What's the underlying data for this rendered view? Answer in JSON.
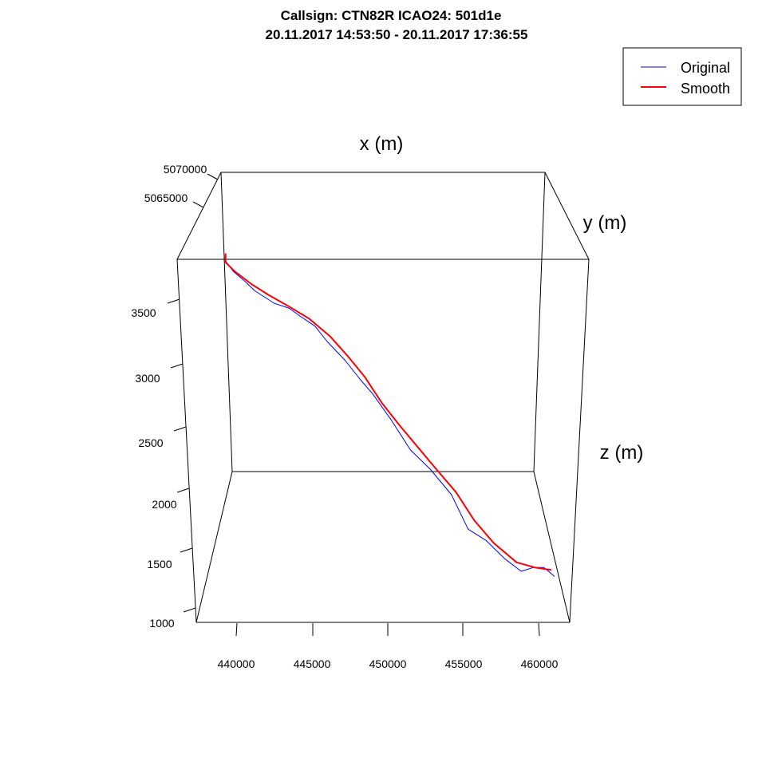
{
  "chart_data": {
    "type": "line",
    "title": "Callsign: CTN82R   ICAO24: 501d1e",
    "subtitle": "20.11.2017 14:53:50 - 20.11.2017 17:36:55",
    "xlabel": "x (m)",
    "ylabel": "y (m)",
    "zlabel": "z (m)",
    "x_ticks": [
      "440000",
      "445000",
      "450000",
      "455000",
      "460000"
    ],
    "y_ticks": [
      "5070000",
      "5065000"
    ],
    "z_ticks": [
      "1000",
      "1500",
      "2000",
      "2500",
      "3000",
      "3500"
    ],
    "legend_position": "top-right",
    "series": [
      {
        "name": "Original",
        "color": "#0000ff",
        "points": [
          [
            439300,
            3830
          ],
          [
            439800,
            3750
          ],
          [
            440500,
            3680
          ],
          [
            441200,
            3600
          ],
          [
            442500,
            3500
          ],
          [
            443500,
            3460
          ],
          [
            444200,
            3400
          ],
          [
            445200,
            3320
          ],
          [
            446000,
            3200
          ],
          [
            447200,
            3050
          ],
          [
            448200,
            2900
          ],
          [
            449000,
            2790
          ],
          [
            450200,
            2590
          ],
          [
            451500,
            2350
          ],
          [
            452800,
            2200
          ],
          [
            454200,
            2000
          ],
          [
            455300,
            1730
          ],
          [
            456500,
            1640
          ],
          [
            457700,
            1500
          ],
          [
            458800,
            1400
          ],
          [
            459600,
            1430
          ],
          [
            460300,
            1430
          ],
          [
            461000,
            1360
          ]
        ]
      },
      {
        "name": "Smooth",
        "color": "#ff0000",
        "points": [
          [
            439300,
            3890
          ],
          [
            439300,
            3820
          ],
          [
            439900,
            3750
          ],
          [
            441000,
            3650
          ],
          [
            442200,
            3560
          ],
          [
            443400,
            3480
          ],
          [
            444800,
            3380
          ],
          [
            446200,
            3240
          ],
          [
            447400,
            3080
          ],
          [
            448500,
            2920
          ],
          [
            449600,
            2720
          ],
          [
            450800,
            2540
          ],
          [
            452000,
            2370
          ],
          [
            453200,
            2200
          ],
          [
            454500,
            2020
          ],
          [
            455700,
            1800
          ],
          [
            457000,
            1620
          ],
          [
            458500,
            1470
          ],
          [
            459700,
            1430
          ],
          [
            460800,
            1410
          ]
        ]
      }
    ]
  }
}
